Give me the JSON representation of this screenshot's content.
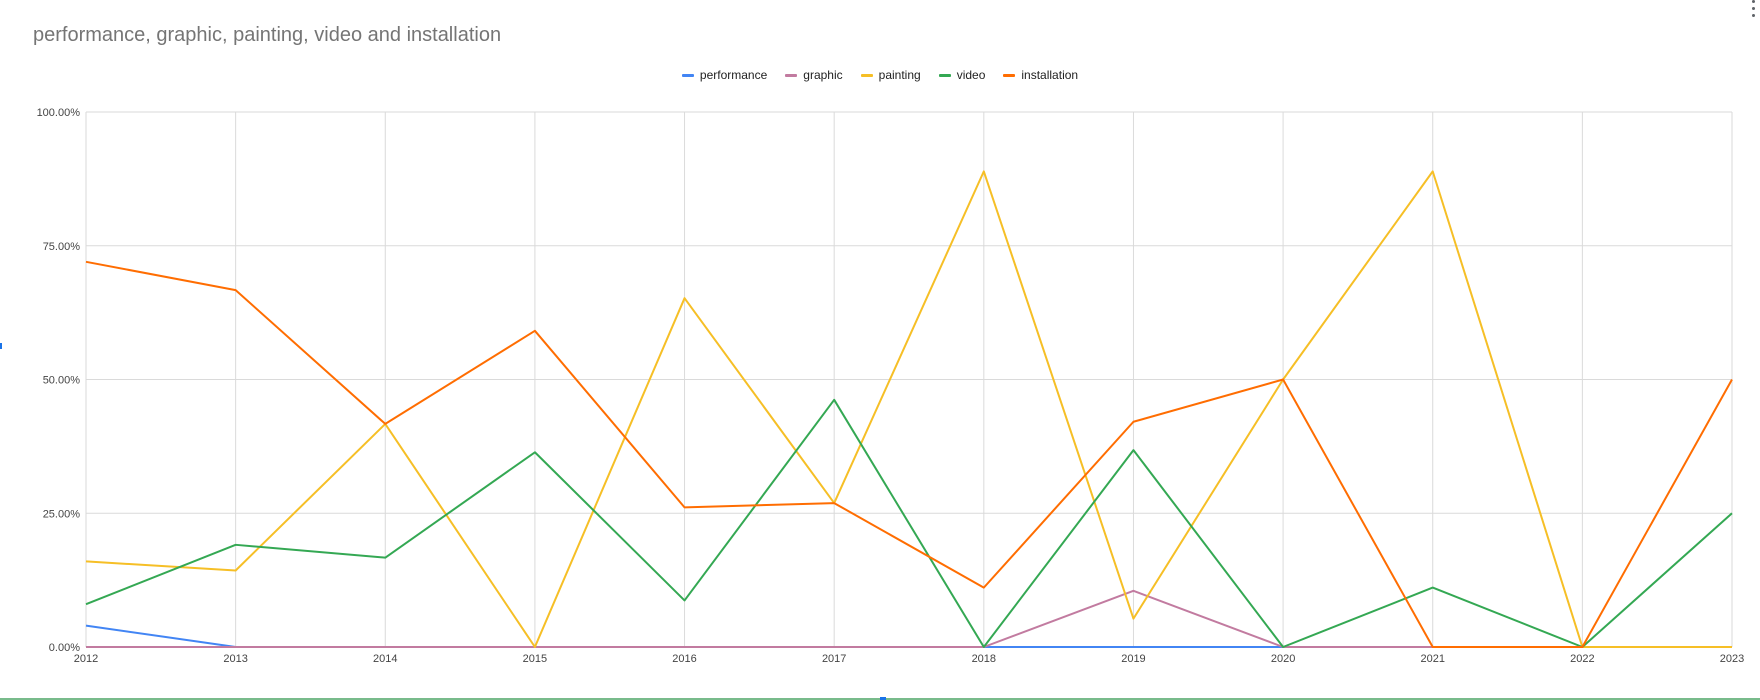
{
  "title": "performance, graphic, painting, video and installation",
  "chart_data": {
    "type": "line",
    "title": "performance, graphic, painting, video and installation",
    "xlabel": "",
    "ylabel": "",
    "x": [
      "2012",
      "2013",
      "2014",
      "2015",
      "2016",
      "2017",
      "2018",
      "2019",
      "2020",
      "2021",
      "2022",
      "2023"
    ],
    "ylim": [
      0,
      100
    ],
    "y_ticks": [
      "0.00%",
      "25.00%",
      "50.00%",
      "75.00%",
      "100.00%"
    ],
    "grid": true,
    "legend_position": "top-center",
    "series": [
      {
        "name": "performance",
        "color": "#4285f4",
        "values": [
          4,
          0,
          0,
          0,
          0,
          0,
          0,
          0,
          0,
          0,
          0,
          0
        ]
      },
      {
        "name": "graphic",
        "color": "#c27ba0",
        "values": [
          0,
          0,
          0,
          0,
          0,
          0,
          0,
          10.5,
          0,
          0,
          0,
          0
        ]
      },
      {
        "name": "painting",
        "color": "#f6bf26",
        "values": [
          16,
          14.3,
          41.7,
          0,
          65.2,
          26.9,
          88.9,
          5.3,
          50,
          88.9,
          0,
          0
        ]
      },
      {
        "name": "video",
        "color": "#34a853",
        "values": [
          8,
          19.1,
          16.7,
          36.4,
          8.7,
          46.2,
          0,
          36.8,
          0,
          11.1,
          0,
          25
        ]
      },
      {
        "name": "installation",
        "color": "#ff6d01",
        "values": [
          72,
          66.7,
          41.7,
          59.1,
          26.1,
          26.9,
          11.1,
          42.1,
          50,
          0,
          0,
          50
        ]
      }
    ]
  }
}
